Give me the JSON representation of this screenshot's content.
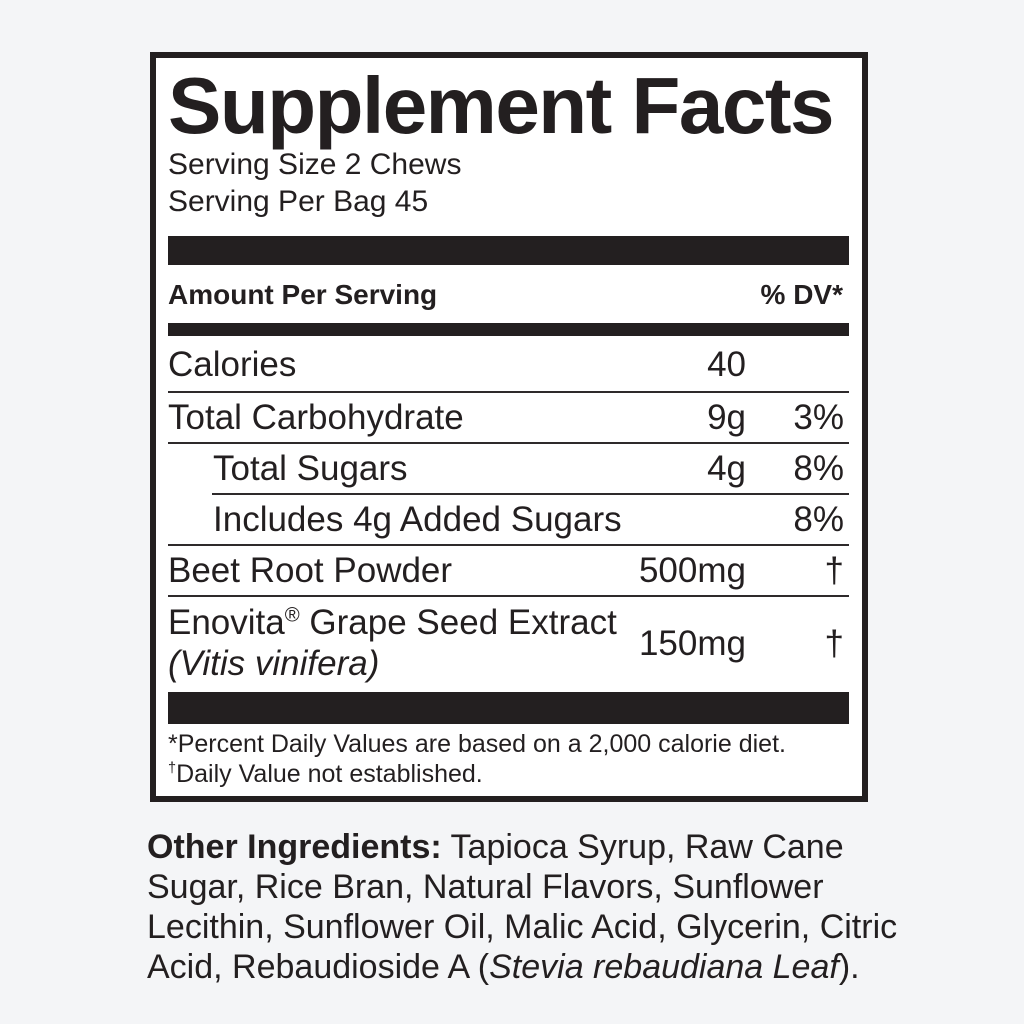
{
  "colors": {
    "background": "#f4f5f7",
    "panel_background": "#ffffff",
    "ink": "#231f20"
  },
  "panel": {
    "title": "Supplement Facts",
    "serving_size": "Serving Size 2 Chews",
    "servings_per_bag": "Serving Per Bag 45",
    "header": {
      "amount_label": "Amount Per Serving",
      "dv_label": "% DV*"
    },
    "rows": [
      {
        "name": "calories",
        "label_parts": [
          {
            "text": "Calories"
          }
        ],
        "amount": "40",
        "dv": "",
        "indent": false,
        "sep_after": "full"
      },
      {
        "name": "total-carbohydrate",
        "label_parts": [
          {
            "text": "Total Carbohydrate"
          }
        ],
        "amount": "9g",
        "dv": "3%",
        "indent": false,
        "sep_after": "full"
      },
      {
        "name": "total-sugars",
        "label_parts": [
          {
            "text": "Total Sugars"
          }
        ],
        "amount": "4g",
        "dv": "8%",
        "indent": true,
        "sep_after": "indent"
      },
      {
        "name": "added-sugars",
        "label_parts": [
          {
            "text": "Includes 4g Added Sugars"
          }
        ],
        "amount": "",
        "dv": "8%",
        "indent": true,
        "sep_after": "full"
      },
      {
        "name": "beet-root-powder",
        "label_parts": [
          {
            "text": "Beet Root Powder"
          }
        ],
        "amount": "500mg",
        "dv": "†",
        "indent": false,
        "sep_after": "full"
      },
      {
        "name": "grape-seed-extract",
        "label_parts": [
          {
            "text": "Enovita"
          },
          {
            "text": "®",
            "sup": true
          },
          {
            "text": " Grape Seed Extract"
          },
          {
            "break": true
          },
          {
            "text": "(Vitis vinifera)",
            "italic": true
          }
        ],
        "amount": "150mg",
        "dv": "†",
        "indent": false,
        "sep_after": "none"
      }
    ],
    "footnotes": [
      {
        "parts": [
          {
            "text": "*Percent Daily Values are based on a 2,000 calorie diet."
          }
        ]
      },
      {
        "parts": [
          {
            "text": "†",
            "sup": true
          },
          {
            "text": "Daily Value not established."
          }
        ]
      }
    ]
  },
  "other_ingredients": {
    "parts": [
      {
        "text": "Other Ingredients:",
        "bold": true
      },
      {
        "text": " Tapioca Syrup, Raw Cane"
      },
      {
        "break": true
      },
      {
        "text": "Sugar, Rice Bran, Natural Flavors, Sunflower"
      },
      {
        "break": true
      },
      {
        "text": "Lecithin, Sunflower Oil, Malic Acid, Glycerin, Citric"
      },
      {
        "break": true
      },
      {
        "text": "Acid, Rebaudioside A ("
      },
      {
        "text": "Stevia rebaudiana Leaf",
        "italic": true
      },
      {
        "text": ")."
      }
    ]
  }
}
